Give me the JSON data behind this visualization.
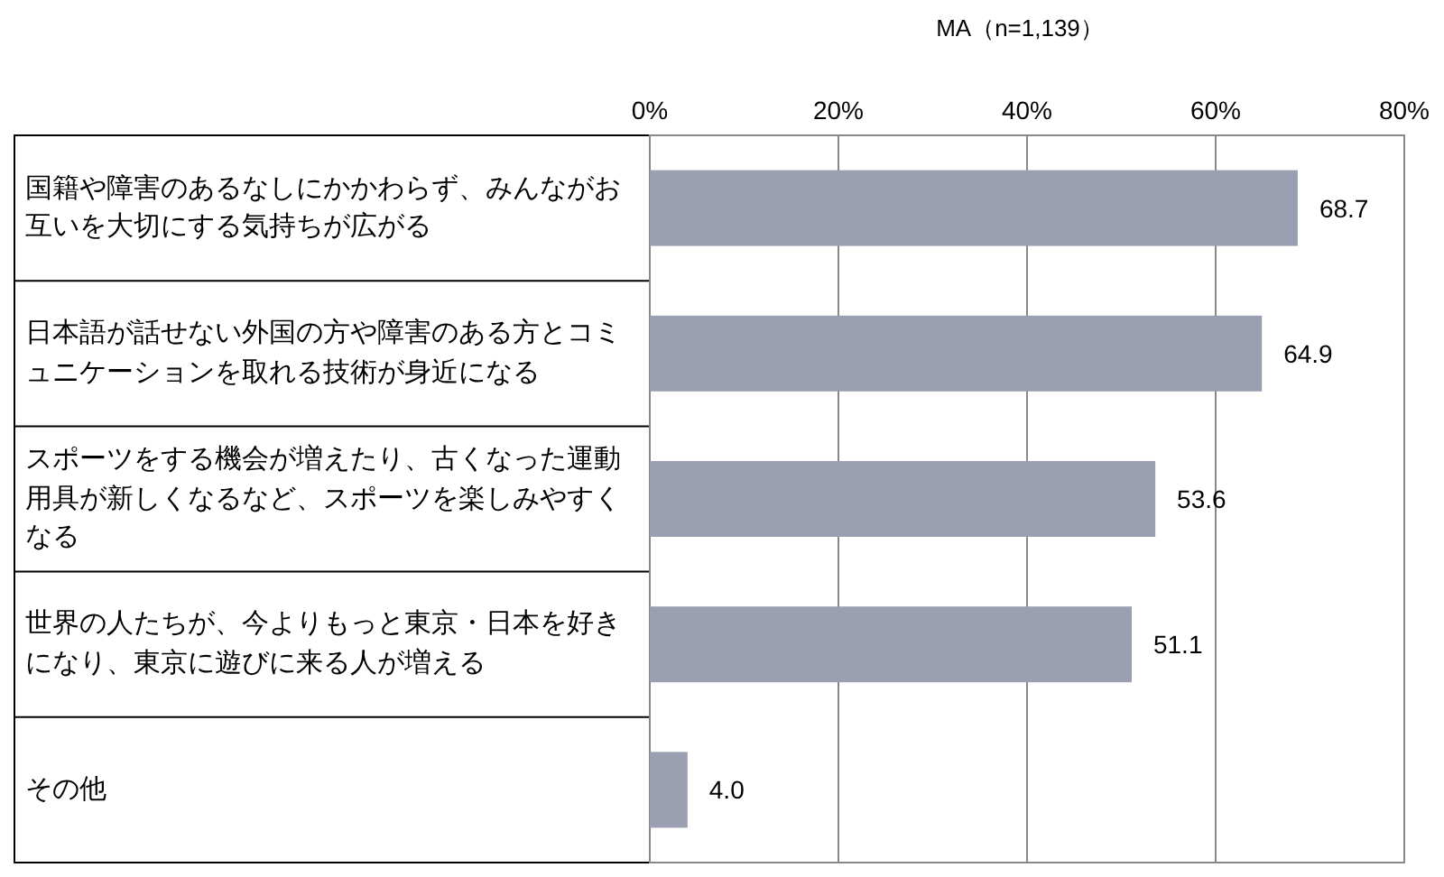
{
  "chart_data": {
    "type": "bar",
    "orientation": "horizontal",
    "categories": [
      "国籍や障害のあるなしにかかわらず、みんながお互いを大切にする気持ちが広がる",
      "日本語が話せない外国の方や障害のある方とコミュニケーションを取れる技術が身近になる",
      "スポーツをする機会が増えたり、古くなった運動用具が新しくなるなど、スポーツを楽しみやすくなる",
      "世界の人たちが、今よりもっと東京・日本を好きになり、東京に遊びに来る人が増える",
      "その他"
    ],
    "values": [
      68.7,
      64.9,
      53.6,
      51.1,
      4.0
    ],
    "value_labels": [
      "68.7",
      "64.9",
      "53.6",
      "51.1",
      "4.0"
    ],
    "color": "#9a9fb1",
    "xlim": [
      0,
      80
    ],
    "xticks": [
      {
        "value": 0,
        "label": "0%"
      },
      {
        "value": 20,
        "label": "20%"
      },
      {
        "value": 40,
        "label": "40%"
      },
      {
        "value": 60,
        "label": "60%"
      },
      {
        "value": 80,
        "label": "80%"
      }
    ],
    "grid": "x",
    "annotations": [
      "MA（n=1,139）"
    ]
  }
}
